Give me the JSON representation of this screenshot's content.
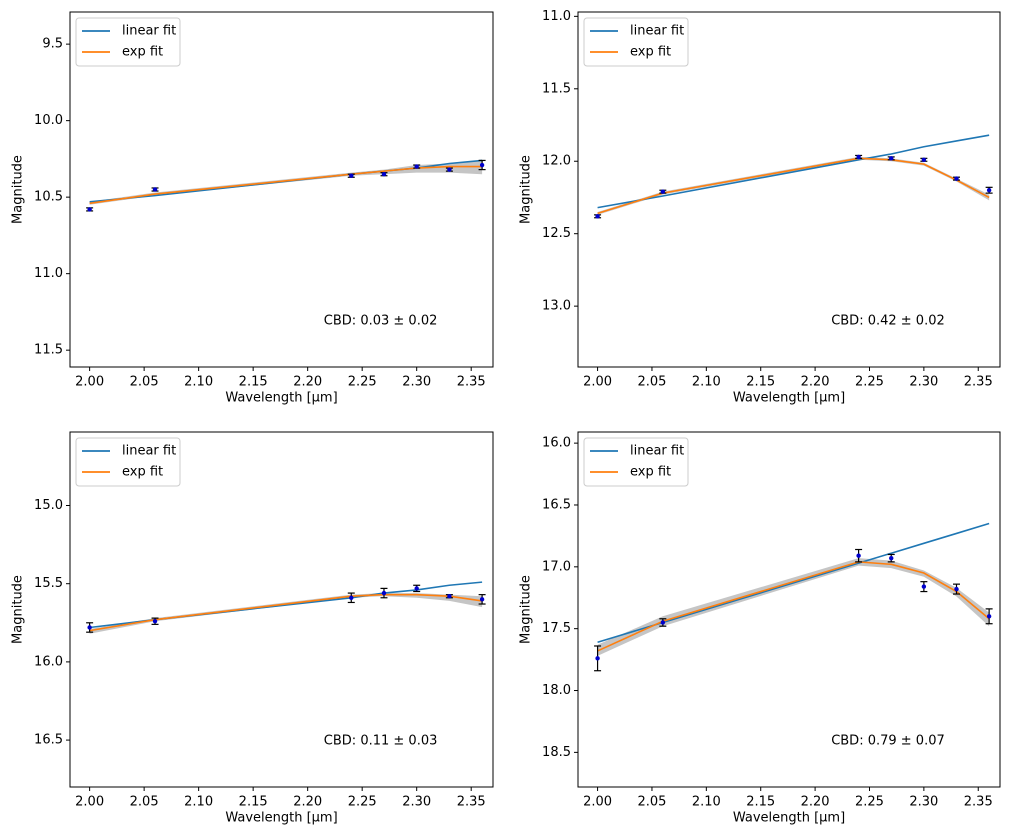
{
  "chart_data": [
    {
      "type": "line",
      "x": [
        2.0,
        2.06,
        2.24,
        2.27,
        2.3,
        2.33,
        2.36
      ],
      "xlabel": "Wavelength [μm]",
      "ylabel": "Magnitude",
      "y_inverted": true,
      "xlim": [
        1.982,
        2.37
      ],
      "ylim": [
        9.29,
        11.61
      ],
      "xticks": [
        {
          "value": 2.0,
          "label": "2.00"
        },
        {
          "value": 2.05,
          "label": "2.05"
        },
        {
          "value": 2.1,
          "label": "2.10"
        },
        {
          "value": 2.15,
          "label": "2.15"
        },
        {
          "value": 2.2,
          "label": "2.20"
        },
        {
          "value": 2.25,
          "label": "2.25"
        },
        {
          "value": 2.3,
          "label": "2.30"
        },
        {
          "value": 2.35,
          "label": "2.35"
        }
      ],
      "yticks": [
        9.5,
        {
          "value": 10,
          "label": "10.0"
        },
        10.5,
        {
          "value": 11,
          "label": "11.0"
        },
        11.5
      ],
      "legend": "upper left",
      "series": [
        {
          "name": "linear fit",
          "color": "#1f77b4",
          "values": [
            10.53,
            10.49,
            10.35,
            10.33,
            10.31,
            10.28,
            10.26
          ]
        },
        {
          "name": "exp fit",
          "color": "#ff7f0e",
          "values": [
            10.54,
            10.48,
            10.35,
            10.33,
            10.31,
            10.3,
            10.3
          ]
        }
      ],
      "band": {
        "color": "#bbbbbb",
        "low": [
          10.53,
          10.47,
          10.34,
          10.32,
          10.29,
          10.28,
          10.26
        ],
        "high": [
          10.55,
          10.49,
          10.36,
          10.35,
          10.34,
          10.34,
          10.35
        ]
      },
      "observed": {
        "color": "#0000cc",
        "values": [
          10.58,
          10.45,
          10.36,
          10.35,
          10.3,
          10.32,
          10.29
        ],
        "errors": [
          0.01,
          0.01,
          0.01,
          0.01,
          0.01,
          0.01,
          0.03
        ]
      },
      "annotation": "CBD: 0.03 ± 0.02"
    },
    {
      "type": "line",
      "x": [
        2.0,
        2.06,
        2.24,
        2.27,
        2.3,
        2.33,
        2.36
      ],
      "xlabel": "Wavelength [μm]",
      "ylabel": "Magnitude",
      "y_inverted": true,
      "xlim": [
        1.982,
        2.37
      ],
      "ylim": [
        10.97,
        13.42
      ],
      "xticks": [
        {
          "value": 2.0,
          "label": "2.00"
        },
        {
          "value": 2.05,
          "label": "2.05"
        },
        {
          "value": 2.1,
          "label": "2.10"
        },
        {
          "value": 2.15,
          "label": "2.15"
        },
        {
          "value": 2.2,
          "label": "2.20"
        },
        {
          "value": 2.25,
          "label": "2.25"
        },
        {
          "value": 2.3,
          "label": "2.30"
        },
        {
          "value": 2.35,
          "label": "2.35"
        }
      ],
      "yticks": [
        {
          "value": 11,
          "label": "11.0"
        },
        11.5,
        {
          "value": 12,
          "label": "12.0"
        },
        12.5,
        {
          "value": 13,
          "label": "13.0"
        }
      ],
      "legend": "upper left",
      "series": [
        {
          "name": "linear fit",
          "color": "#1f77b4",
          "values": [
            12.32,
            12.24,
            11.99,
            11.95,
            11.9,
            11.86,
            11.82
          ]
        },
        {
          "name": "exp fit",
          "color": "#ff7f0e",
          "values": [
            12.36,
            12.22,
            11.98,
            11.99,
            12.02,
            12.13,
            12.25
          ]
        }
      ],
      "band": {
        "color": "#bbbbbb",
        "low": [
          12.35,
          12.21,
          11.97,
          11.98,
          12.01,
          12.12,
          12.23
        ],
        "high": [
          12.37,
          12.23,
          11.99,
          12.0,
          12.03,
          12.14,
          12.27
        ]
      },
      "observed": {
        "color": "#0000cc",
        "values": [
          12.38,
          12.21,
          11.97,
          11.98,
          11.99,
          12.12,
          12.2
        ],
        "errors": [
          0.01,
          0.01,
          0.01,
          0.01,
          0.01,
          0.01,
          0.02
        ]
      },
      "annotation": "CBD: 0.42 ± 0.02"
    },
    {
      "type": "line",
      "x": [
        2.0,
        2.06,
        2.24,
        2.27,
        2.3,
        2.33,
        2.36
      ],
      "xlabel": "Wavelength [μm]",
      "ylabel": "Magnitude",
      "y_inverted": true,
      "xlim": [
        1.982,
        2.37
      ],
      "ylim": [
        14.53,
        16.8
      ],
      "xticks": [
        {
          "value": 2.0,
          "label": "2.00"
        },
        {
          "value": 2.05,
          "label": "2.05"
        },
        {
          "value": 2.1,
          "label": "2.10"
        },
        {
          "value": 2.15,
          "label": "2.15"
        },
        {
          "value": 2.2,
          "label": "2.20"
        },
        {
          "value": 2.25,
          "label": "2.25"
        },
        {
          "value": 2.3,
          "label": "2.30"
        },
        {
          "value": 2.35,
          "label": "2.35"
        }
      ],
      "yticks": [
        {
          "value": 15,
          "label": "15.0"
        },
        15.5,
        {
          "value": 16,
          "label": "16.0"
        },
        16.5
      ],
      "legend": "upper left",
      "series": [
        {
          "name": "linear fit",
          "color": "#1f77b4",
          "values": [
            15.78,
            15.73,
            15.59,
            15.56,
            15.54,
            15.51,
            15.49
          ]
        },
        {
          "name": "exp fit",
          "color": "#ff7f0e",
          "values": [
            15.8,
            15.73,
            15.58,
            15.57,
            15.57,
            15.58,
            15.61
          ]
        }
      ],
      "band": {
        "color": "#bbbbbb",
        "low": [
          15.79,
          15.72,
          15.57,
          15.56,
          15.56,
          15.57,
          15.58
        ],
        "high": [
          15.82,
          15.74,
          15.59,
          15.58,
          15.59,
          15.61,
          15.65
        ]
      },
      "observed": {
        "color": "#0000cc",
        "values": [
          15.78,
          15.74,
          15.59,
          15.56,
          15.53,
          15.58,
          15.6
        ],
        "errors": [
          0.03,
          0.02,
          0.03,
          0.03,
          0.02,
          0.01,
          0.03
        ]
      },
      "annotation": "CBD: 0.11 ± 0.03"
    },
    {
      "type": "line",
      "x": [
        2.0,
        2.06,
        2.24,
        2.27,
        2.3,
        2.33,
        2.36
      ],
      "xlabel": "Wavelength [μm]",
      "ylabel": "Magnitude",
      "y_inverted": true,
      "xlim": [
        1.982,
        2.37
      ],
      "ylim": [
        15.91,
        18.78
      ],
      "xticks": [
        {
          "value": 2.0,
          "label": "2.00"
        },
        {
          "value": 2.05,
          "label": "2.05"
        },
        {
          "value": 2.1,
          "label": "2.10"
        },
        {
          "value": 2.15,
          "label": "2.15"
        },
        {
          "value": 2.2,
          "label": "2.20"
        },
        {
          "value": 2.25,
          "label": "2.25"
        },
        {
          "value": 2.3,
          "label": "2.30"
        },
        {
          "value": 2.35,
          "label": "2.35"
        }
      ],
      "yticks": [
        {
          "value": 16,
          "label": "16.0"
        },
        16.5,
        {
          "value": 17,
          "label": "17.0"
        },
        17.5,
        {
          "value": 18,
          "label": "18.0"
        },
        18.5
      ],
      "legend": "upper left",
      "series": [
        {
          "name": "linear fit",
          "color": "#1f77b4",
          "values": [
            17.61,
            17.45,
            16.97,
            16.89,
            16.81,
            16.73,
            16.65
          ]
        },
        {
          "name": "exp fit",
          "color": "#ff7f0e",
          "values": [
            17.68,
            17.44,
            16.96,
            16.98,
            17.05,
            17.2,
            17.42
          ]
        }
      ],
      "band": {
        "color": "#bbbbbb",
        "low": [
          17.63,
          17.4,
          16.93,
          16.95,
          17.03,
          17.17,
          17.37
        ],
        "high": [
          17.72,
          17.48,
          16.99,
          17.01,
          17.08,
          17.24,
          17.48
        ]
      },
      "observed": {
        "color": "#0000cc",
        "values": [
          17.74,
          17.45,
          16.91,
          16.93,
          17.16,
          17.18,
          17.4
        ],
        "errors": [
          0.1,
          0.03,
          0.05,
          0.03,
          0.04,
          0.04,
          0.06
        ]
      },
      "annotation": "CBD: 0.79 ± 0.07"
    }
  ]
}
